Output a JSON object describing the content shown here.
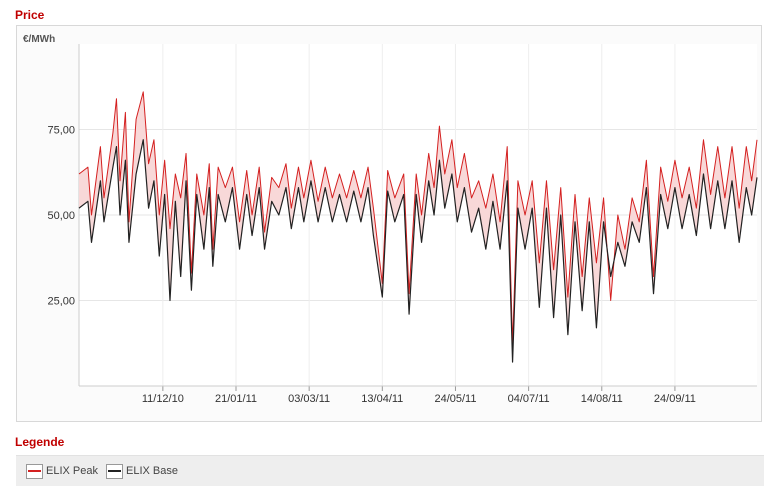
{
  "header": {
    "price_title": "Price",
    "legend_title": "Legende"
  },
  "chart_data": {
    "type": "line",
    "ylabel": "€/MWh",
    "ylim": [
      0,
      100
    ],
    "yticks": [
      25,
      50,
      75
    ],
    "ytick_labels": [
      "25,00",
      "50,00",
      "75,00"
    ],
    "x_start": "2010-10-25",
    "x_end": "2011-11-09",
    "xticks": [
      "2010-12-11",
      "2011-01-21",
      "2011-03-03",
      "2011-04-13",
      "2011-05-24",
      "2011-07-04",
      "2011-08-14",
      "2011-09-24"
    ],
    "xtick_labels": [
      "11/12/10",
      "21/01/11",
      "03/03/11",
      "13/04/11",
      "24/05/11",
      "04/07/11",
      "14/08/11",
      "24/09/11"
    ],
    "grid": true,
    "legend_position": "bottom",
    "series": [
      {
        "name": "ELIX Peak",
        "color": "#d42020",
        "points": [
          [
            "2010-10-25",
            62
          ],
          [
            "2010-10-30",
            64
          ],
          [
            "2010-11-01",
            50
          ],
          [
            "2010-11-06",
            70
          ],
          [
            "2010-11-08",
            55
          ],
          [
            "2010-11-13",
            74
          ],
          [
            "2010-11-15",
            84
          ],
          [
            "2010-11-17",
            60
          ],
          [
            "2010-11-20",
            80
          ],
          [
            "2010-11-22",
            48
          ],
          [
            "2010-11-26",
            78
          ],
          [
            "2010-11-30",
            86
          ],
          [
            "2010-12-03",
            65
          ],
          [
            "2010-12-06",
            72
          ],
          [
            "2010-12-09",
            50
          ],
          [
            "2010-12-12",
            66
          ],
          [
            "2010-12-15",
            46
          ],
          [
            "2010-12-18",
            62
          ],
          [
            "2010-12-21",
            55
          ],
          [
            "2010-12-24",
            68
          ],
          [
            "2010-12-27",
            33
          ],
          [
            "2010-12-30",
            62
          ],
          [
            "2011-01-03",
            50
          ],
          [
            "2011-01-06",
            65
          ],
          [
            "2011-01-08",
            40
          ],
          [
            "2011-01-11",
            64
          ],
          [
            "2011-01-15",
            58
          ],
          [
            "2011-01-19",
            64
          ],
          [
            "2011-01-23",
            48
          ],
          [
            "2011-01-27",
            63
          ],
          [
            "2011-01-30",
            50
          ],
          [
            "2011-02-03",
            64
          ],
          [
            "2011-02-06",
            45
          ],
          [
            "2011-02-10",
            61
          ],
          [
            "2011-02-14",
            58
          ],
          [
            "2011-02-18",
            65
          ],
          [
            "2011-02-21",
            52
          ],
          [
            "2011-02-25",
            64
          ],
          [
            "2011-02-28",
            55
          ],
          [
            "2011-03-04",
            66
          ],
          [
            "2011-03-08",
            54
          ],
          [
            "2011-03-12",
            64
          ],
          [
            "2011-03-16",
            55
          ],
          [
            "2011-03-20",
            62
          ],
          [
            "2011-03-24",
            55
          ],
          [
            "2011-03-28",
            63
          ],
          [
            "2011-04-01",
            55
          ],
          [
            "2011-04-05",
            64
          ],
          [
            "2011-04-08",
            52
          ],
          [
            "2011-04-13",
            30
          ],
          [
            "2011-04-16",
            63
          ],
          [
            "2011-04-20",
            55
          ],
          [
            "2011-04-25",
            62
          ],
          [
            "2011-04-28",
            27
          ],
          [
            "2011-05-02",
            62
          ],
          [
            "2011-05-05",
            50
          ],
          [
            "2011-05-09",
            68
          ],
          [
            "2011-05-12",
            58
          ],
          [
            "2011-05-15",
            76
          ],
          [
            "2011-05-18",
            62
          ],
          [
            "2011-05-22",
            72
          ],
          [
            "2011-05-25",
            58
          ],
          [
            "2011-05-29",
            68
          ],
          [
            "2011-06-02",
            55
          ],
          [
            "2011-06-06",
            60
          ],
          [
            "2011-06-10",
            52
          ],
          [
            "2011-06-14",
            62
          ],
          [
            "2011-06-18",
            48
          ],
          [
            "2011-06-22",
            70
          ],
          [
            "2011-06-25",
            12
          ],
          [
            "2011-06-28",
            60
          ],
          [
            "2011-07-02",
            50
          ],
          [
            "2011-07-06",
            60
          ],
          [
            "2011-07-10",
            36
          ],
          [
            "2011-07-14",
            60
          ],
          [
            "2011-07-18",
            34
          ],
          [
            "2011-07-22",
            58
          ],
          [
            "2011-07-26",
            26
          ],
          [
            "2011-07-30",
            56
          ],
          [
            "2011-08-03",
            32
          ],
          [
            "2011-08-07",
            55
          ],
          [
            "2011-08-11",
            36
          ],
          [
            "2011-08-15",
            55
          ],
          [
            "2011-08-19",
            25
          ],
          [
            "2011-08-23",
            50
          ],
          [
            "2011-08-27",
            40
          ],
          [
            "2011-08-31",
            55
          ],
          [
            "2011-09-04",
            48
          ],
          [
            "2011-09-08",
            66
          ],
          [
            "2011-09-12",
            32
          ],
          [
            "2011-09-16",
            64
          ],
          [
            "2011-09-20",
            54
          ],
          [
            "2011-09-24",
            66
          ],
          [
            "2011-09-28",
            55
          ],
          [
            "2011-10-02",
            64
          ],
          [
            "2011-10-06",
            52
          ],
          [
            "2011-10-10",
            72
          ],
          [
            "2011-10-14",
            56
          ],
          [
            "2011-10-18",
            70
          ],
          [
            "2011-10-22",
            55
          ],
          [
            "2011-10-26",
            70
          ],
          [
            "2011-10-30",
            52
          ],
          [
            "2011-11-03",
            70
          ],
          [
            "2011-11-06",
            60
          ],
          [
            "2011-11-09",
            72
          ]
        ]
      },
      {
        "name": "ELIX Base",
        "color": "#222222",
        "points": [
          [
            "2010-10-25",
            52
          ],
          [
            "2010-10-30",
            54
          ],
          [
            "2010-11-01",
            42
          ],
          [
            "2010-11-06",
            60
          ],
          [
            "2010-11-08",
            48
          ],
          [
            "2010-11-13",
            64
          ],
          [
            "2010-11-15",
            70
          ],
          [
            "2010-11-17",
            50
          ],
          [
            "2010-11-20",
            66
          ],
          [
            "2010-11-22",
            42
          ],
          [
            "2010-11-26",
            62
          ],
          [
            "2010-11-30",
            72
          ],
          [
            "2010-12-03",
            52
          ],
          [
            "2010-12-06",
            60
          ],
          [
            "2010-12-09",
            38
          ],
          [
            "2010-12-12",
            56
          ],
          [
            "2010-12-15",
            25
          ],
          [
            "2010-12-18",
            54
          ],
          [
            "2010-12-21",
            32
          ],
          [
            "2010-12-24",
            60
          ],
          [
            "2010-12-27",
            28
          ],
          [
            "2010-12-30",
            56
          ],
          [
            "2011-01-03",
            40
          ],
          [
            "2011-01-06",
            58
          ],
          [
            "2011-01-08",
            35
          ],
          [
            "2011-01-11",
            56
          ],
          [
            "2011-01-15",
            48
          ],
          [
            "2011-01-19",
            58
          ],
          [
            "2011-01-23",
            40
          ],
          [
            "2011-01-27",
            56
          ],
          [
            "2011-01-30",
            44
          ],
          [
            "2011-02-03",
            58
          ],
          [
            "2011-02-06",
            40
          ],
          [
            "2011-02-10",
            54
          ],
          [
            "2011-02-14",
            50
          ],
          [
            "2011-02-18",
            58
          ],
          [
            "2011-02-21",
            46
          ],
          [
            "2011-02-25",
            58
          ],
          [
            "2011-02-28",
            48
          ],
          [
            "2011-03-04",
            60
          ],
          [
            "2011-03-08",
            48
          ],
          [
            "2011-03-12",
            58
          ],
          [
            "2011-03-16",
            48
          ],
          [
            "2011-03-20",
            56
          ],
          [
            "2011-03-24",
            48
          ],
          [
            "2011-03-28",
            57
          ],
          [
            "2011-04-01",
            48
          ],
          [
            "2011-04-05",
            58
          ],
          [
            "2011-04-08",
            44
          ],
          [
            "2011-04-13",
            26
          ],
          [
            "2011-04-16",
            57
          ],
          [
            "2011-04-20",
            48
          ],
          [
            "2011-04-25",
            56
          ],
          [
            "2011-04-28",
            21
          ],
          [
            "2011-05-02",
            56
          ],
          [
            "2011-05-05",
            42
          ],
          [
            "2011-05-09",
            60
          ],
          [
            "2011-05-12",
            50
          ],
          [
            "2011-05-15",
            66
          ],
          [
            "2011-05-18",
            52
          ],
          [
            "2011-05-22",
            62
          ],
          [
            "2011-05-25",
            48
          ],
          [
            "2011-05-29",
            58
          ],
          [
            "2011-06-02",
            45
          ],
          [
            "2011-06-06",
            52
          ],
          [
            "2011-06-10",
            40
          ],
          [
            "2011-06-14",
            54
          ],
          [
            "2011-06-18",
            40
          ],
          [
            "2011-06-22",
            60
          ],
          [
            "2011-06-25",
            7
          ],
          [
            "2011-06-28",
            52
          ],
          [
            "2011-07-02",
            40
          ],
          [
            "2011-07-06",
            52
          ],
          [
            "2011-07-10",
            23
          ],
          [
            "2011-07-14",
            52
          ],
          [
            "2011-07-18",
            20
          ],
          [
            "2011-07-22",
            50
          ],
          [
            "2011-07-26",
            15
          ],
          [
            "2011-07-30",
            48
          ],
          [
            "2011-08-03",
            22
          ],
          [
            "2011-08-07",
            48
          ],
          [
            "2011-08-11",
            17
          ],
          [
            "2011-08-15",
            48
          ],
          [
            "2011-08-19",
            32
          ],
          [
            "2011-08-23",
            42
          ],
          [
            "2011-08-27",
            35
          ],
          [
            "2011-08-31",
            48
          ],
          [
            "2011-09-04",
            42
          ],
          [
            "2011-09-08",
            58
          ],
          [
            "2011-09-12",
            27
          ],
          [
            "2011-09-16",
            56
          ],
          [
            "2011-09-20",
            46
          ],
          [
            "2011-09-24",
            58
          ],
          [
            "2011-09-28",
            46
          ],
          [
            "2011-10-02",
            56
          ],
          [
            "2011-10-06",
            44
          ],
          [
            "2011-10-10",
            62
          ],
          [
            "2011-10-14",
            46
          ],
          [
            "2011-10-18",
            60
          ],
          [
            "2011-10-22",
            46
          ],
          [
            "2011-10-26",
            60
          ],
          [
            "2011-10-30",
            42
          ],
          [
            "2011-11-03",
            58
          ],
          [
            "2011-11-06",
            50
          ],
          [
            "2011-11-09",
            61
          ]
        ]
      }
    ]
  },
  "legend": {
    "items": [
      {
        "label": "ELIX Peak",
        "color": "#d42020"
      },
      {
        "label": "ELIX Base",
        "color": "#222222"
      }
    ]
  }
}
